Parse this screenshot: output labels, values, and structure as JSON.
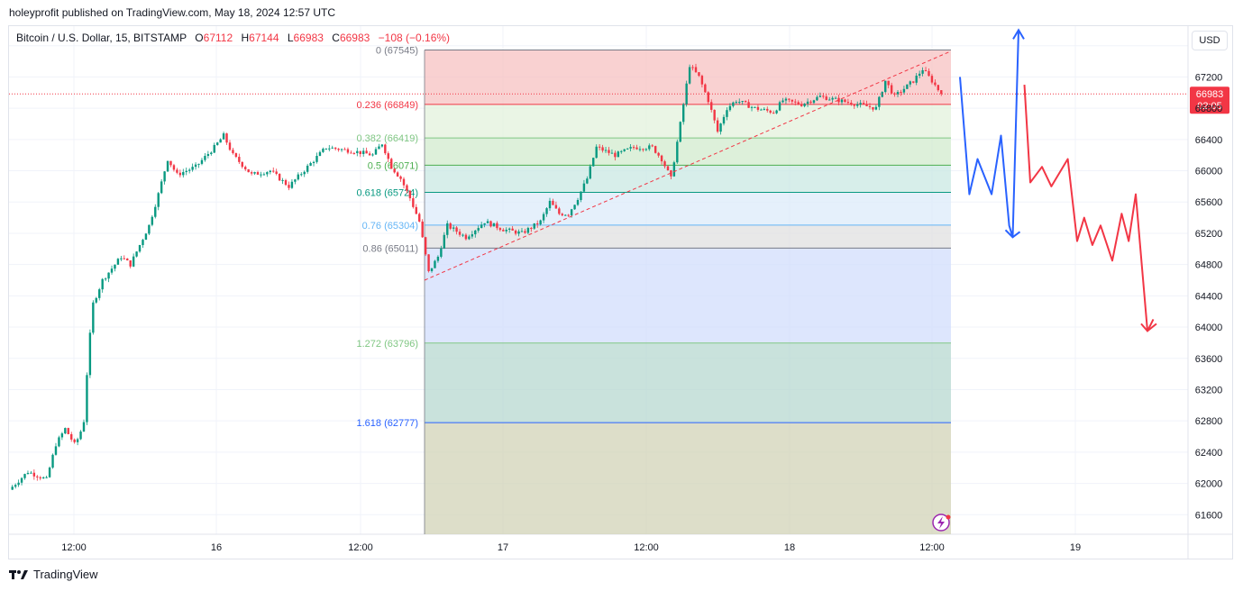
{
  "header": {
    "published_by": "holeyprofit published on TradingView.com, May 18, 2024 12:57 UTC"
  },
  "legend": {
    "symbol": "Bitcoin / U.S. Dollar, 15, BITSTAMP",
    "open_label": "O",
    "open": "67112",
    "high_label": "H",
    "high": "67144",
    "low_label": "L",
    "low": "66983",
    "close_label": "C",
    "close": "66983",
    "change": "−108 (−0.16%)"
  },
  "currency_button": "USD",
  "footer": {
    "brand": "TradingView"
  },
  "colors": {
    "up": "#089981",
    "down": "#f23645",
    "blue_path": "#2962ff",
    "red_path": "#f23645",
    "trendline": "#f23645"
  },
  "price_tag": {
    "price": "66983",
    "countdown": "02:05"
  },
  "chart_data": {
    "type": "candlestick",
    "ylim": [
      61350,
      67850
    ],
    "y_ticks": [
      "67600",
      "67200",
      "66800",
      "66400",
      "66000",
      "65600",
      "65200",
      "64800",
      "64400",
      "64000",
      "63600",
      "63200",
      "62800",
      "62400",
      "62000",
      "61600"
    ],
    "x_ticks": [
      "12:00",
      "16",
      "12:00",
      "17",
      "12:00",
      "18",
      "12:00",
      "19"
    ],
    "current_price": 66983,
    "price_path": [
      [
        0,
        61920
      ],
      [
        0.02,
        62150
      ],
      [
        0.04,
        62050
      ],
      [
        0.05,
        62500
      ],
      [
        0.06,
        62700
      ],
      [
        0.07,
        62500
      ],
      [
        0.075,
        62600
      ],
      [
        0.08,
        62800
      ],
      [
        0.085,
        63700
      ],
      [
        0.09,
        64300
      ],
      [
        0.1,
        64600
      ],
      [
        0.12,
        64900
      ],
      [
        0.13,
        64800
      ],
      [
        0.15,
        65300
      ],
      [
        0.16,
        65700
      ],
      [
        0.17,
        66150
      ],
      [
        0.18,
        65950
      ],
      [
        0.2,
        66050
      ],
      [
        0.22,
        66300
      ],
      [
        0.23,
        66450
      ],
      [
        0.24,
        66200
      ],
      [
        0.26,
        65950
      ],
      [
        0.28,
        66000
      ],
      [
        0.3,
        65800
      ],
      [
        0.32,
        66050
      ],
      [
        0.34,
        66300
      ],
      [
        0.37,
        66250
      ],
      [
        0.39,
        66200
      ],
      [
        0.4,
        66350
      ],
      [
        0.41,
        66050
      ],
      [
        0.42,
        65900
      ],
      [
        0.43,
        65650
      ],
      [
        0.44,
        65350
      ],
      [
        0.45,
        64700
      ],
      [
        0.46,
        64900
      ],
      [
        0.47,
        65300
      ],
      [
        0.49,
        65150
      ],
      [
        0.51,
        65350
      ],
      [
        0.53,
        65250
      ],
      [
        0.55,
        65200
      ],
      [
        0.57,
        65350
      ],
      [
        0.58,
        65600
      ],
      [
        0.59,
        65450
      ],
      [
        0.6,
        65450
      ],
      [
        0.61,
        65650
      ],
      [
        0.62,
        65900
      ],
      [
        0.63,
        66300
      ],
      [
        0.65,
        66200
      ],
      [
        0.67,
        66300
      ],
      [
        0.69,
        66300
      ],
      [
        0.7,
        66150
      ],
      [
        0.71,
        65900
      ],
      [
        0.72,
        66600
      ],
      [
        0.73,
        67350
      ],
      [
        0.74,
        67200
      ],
      [
        0.75,
        66900
      ],
      [
        0.76,
        66500
      ],
      [
        0.77,
        66800
      ],
      [
        0.78,
        66900
      ],
      [
        0.8,
        66800
      ],
      [
        0.82,
        66750
      ],
      [
        0.83,
        66900
      ],
      [
        0.85,
        66850
      ],
      [
        0.87,
        66950
      ],
      [
        0.89,
        66900
      ],
      [
        0.91,
        66850
      ],
      [
        0.93,
        66800
      ],
      [
        0.94,
        67150
      ],
      [
        0.95,
        66950
      ],
      [
        0.96,
        67050
      ],
      [
        0.97,
        67150
      ],
      [
        0.98,
        67300
      ],
      [
        0.99,
        67150
      ],
      [
        1.0,
        66983
      ]
    ],
    "fibonacci": {
      "levels": [
        {
          "ratio": "0",
          "price": 67545,
          "label": "0 (67545)",
          "fill": "#f7c1c1",
          "line": "#787b86",
          "text": "#787b86"
        },
        {
          "ratio": "0.236",
          "price": 66849,
          "label": "0.236 (66849)",
          "fill": "#e3f1dc",
          "line": "#f23645",
          "text": "#f23645"
        },
        {
          "ratio": "0.382",
          "price": 66419,
          "label": "0.382 (66419)",
          "fill": "#d2ebcd",
          "line": "#81c784",
          "text": "#81c784"
        },
        {
          "ratio": "0.5",
          "price": 66071,
          "label": "0.5 (66071)",
          "fill": "#c9e8e3",
          "line": "#4caf50",
          "text": "#4caf50"
        },
        {
          "ratio": "0.618",
          "price": 65724,
          "label": "0.618 (65724)",
          "fill": "#dcebfa",
          "line": "#089981",
          "text": "#089981"
        },
        {
          "ratio": "0.76",
          "price": 65304,
          "label": "0.76 (65304)",
          "fill": "#e0e0e0",
          "line": "#64b5f6",
          "text": "#64b5f6"
        },
        {
          "ratio": "0.86",
          "price": 65011,
          "label": "0.86 (65011)",
          "fill": "#d1ddfc",
          "line": "#787b86",
          "text": "#787b86"
        },
        {
          "ratio": "1.272",
          "price": 63796,
          "label": "1.272 (63796)",
          "fill": "#b7d8d0",
          "line": "#81c784",
          "text": "#81c784"
        },
        {
          "ratio": "1.618",
          "price": 62777,
          "label": "1.618 (62777)",
          "fill": "#d1d3b7",
          "line": "#2962ff",
          "text": "#2962ff"
        }
      ],
      "bottom_price": 61350
    },
    "trendline": {
      "from": [
        0,
        64600
      ],
      "to": [
        1,
        67530
      ]
    },
    "projection_blue": [
      [
        0,
        67200
      ],
      [
        0.08,
        65700
      ],
      [
        0.15,
        66150
      ],
      [
        0.27,
        65700
      ],
      [
        0.35,
        66450
      ],
      [
        0.42,
        65300
      ],
      [
        0.45,
        65150
      ],
      [
        0.5,
        67800
      ]
    ],
    "projection_red": [
      [
        0.55,
        67100
      ],
      [
        0.6,
        65850
      ],
      [
        0.7,
        66050
      ],
      [
        0.78,
        65800
      ],
      [
        0.92,
        66150
      ],
      [
        1.0,
        65100
      ],
      [
        1.06,
        65400
      ],
      [
        1.13,
        65050
      ],
      [
        1.2,
        65300
      ],
      [
        1.3,
        64850
      ],
      [
        1.38,
        65450
      ],
      [
        1.44,
        65100
      ],
      [
        1.5,
        65700
      ],
      [
        1.6,
        63950
      ],
      [
        1.65,
        64100
      ]
    ]
  }
}
